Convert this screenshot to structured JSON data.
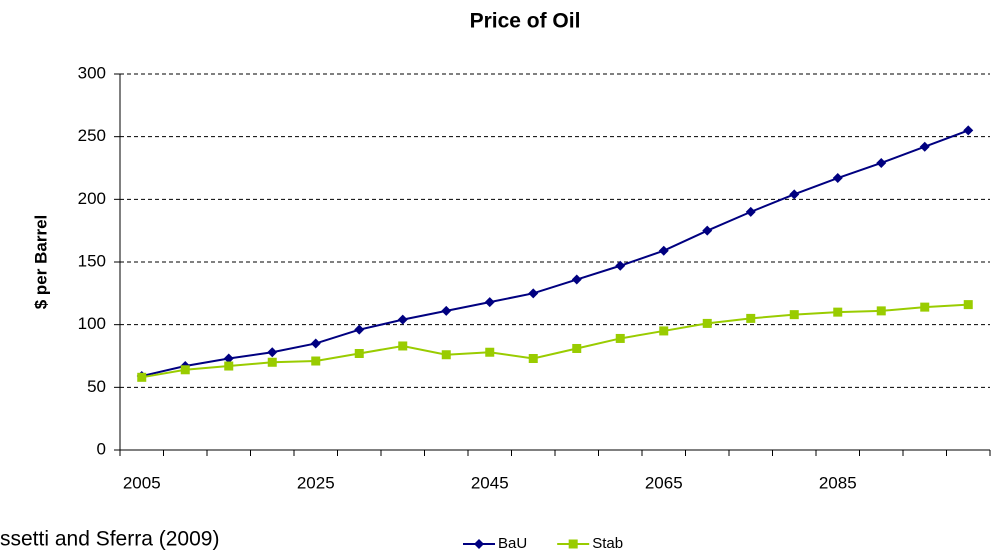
{
  "chart_data": {
    "type": "line",
    "title": "Price of Oil",
    "y_label": "$ per Barrel",
    "source": "ssetti and Sferra (2009)",
    "categories": [
      2005,
      null,
      null,
      null,
      2025,
      null,
      null,
      null,
      2045,
      null,
      null,
      null,
      2065,
      null,
      null,
      null,
      2085,
      null,
      null,
      null
    ],
    "series": [
      {
        "name": "BaU",
        "color": "#000080",
        "marker": "diamond",
        "values": [
          59,
          67,
          73,
          78,
          85,
          96,
          104,
          111,
          118,
          125,
          136,
          147,
          159,
          175,
          190,
          204,
          217,
          229,
          242,
          255
        ]
      },
      {
        "name": "Stab",
        "color": "#99cc00",
        "marker": "square",
        "values": [
          58,
          64,
          67,
          70,
          71,
          77,
          83,
          76,
          78,
          73,
          81,
          89,
          95,
          101,
          105,
          108,
          110,
          111,
          114,
          116
        ]
      }
    ],
    "ylim": [
      0,
      300
    ],
    "yticks": [
      0,
      50,
      100,
      150,
      200,
      250,
      300
    ],
    "grid": true,
    "legend": "bottom"
  }
}
